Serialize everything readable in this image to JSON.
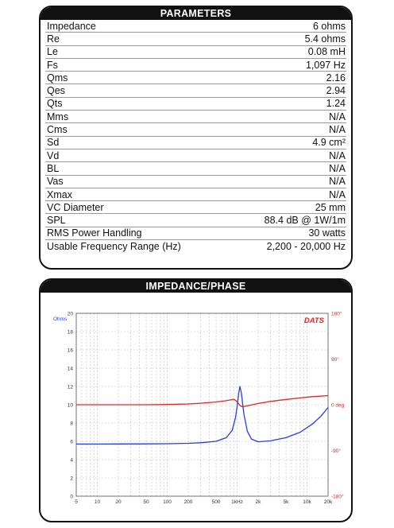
{
  "parameters": {
    "title": "PARAMETERS",
    "rows": [
      {
        "label": "Impedance",
        "value": "6 ohms"
      },
      {
        "label": "Re",
        "value": "5.4 ohms"
      },
      {
        "label": "Le",
        "value": "0.08 mH"
      },
      {
        "label": "Fs",
        "value": "1,097 Hz"
      },
      {
        "label": "Qms",
        "value": "2.16"
      },
      {
        "label": "Qes",
        "value": "2.94"
      },
      {
        "label": "Qts",
        "value": "1.24"
      },
      {
        "label": "Mms",
        "value": "N/A"
      },
      {
        "label": "Cms",
        "value": "N/A"
      },
      {
        "label": "Sd",
        "value": "4.9 cm²"
      },
      {
        "label": "Vd",
        "value": "N/A"
      },
      {
        "label": "BL",
        "value": "N/A"
      },
      {
        "label": "Vas",
        "value": "N/A"
      },
      {
        "label": "Xmax",
        "value": "N/A"
      },
      {
        "label": "VC Diameter",
        "value": "25 mm"
      },
      {
        "label": "SPL",
        "value": "88.4 dB @ 1W/1m"
      },
      {
        "label": "RMS Power Handling",
        "value": "30 watts"
      },
      {
        "label": "Usable Frequency Range (Hz)",
        "value": "2,200 - 20,000 Hz"
      }
    ]
  },
  "impedance_panel": {
    "title": "IMPEDANCE/PHASE",
    "logo_text": "DATS",
    "left_unit": "Ohms",
    "colors": {
      "impedance": "#2a3fd6",
      "phase": "#d42a2a",
      "axis_label_red": "#d42a2a",
      "logo": "#d42a2a"
    }
  },
  "chart_data": {
    "type": "line",
    "x_scale": "log",
    "xlim": [
      5,
      20000
    ],
    "ylim": [
      0,
      20
    ],
    "x_ticks": [
      "5",
      "10",
      "20",
      "50",
      "100",
      "200",
      "500",
      "1kHz",
      "2k",
      "5k",
      "10k",
      "20k"
    ],
    "x_tick_values": [
      5,
      10,
      20,
      50,
      100,
      200,
      500,
      1000,
      2000,
      5000,
      10000,
      20000
    ],
    "y_ticks": [
      0,
      2,
      4,
      6,
      8,
      10,
      12,
      14,
      16,
      18,
      20
    ],
    "right_ticks": [
      "180°",
      "90°",
      "0 deg",
      "-90°",
      "-180°"
    ],
    "right_tick_degrees": [
      180,
      90,
      0,
      -90,
      -180
    ],
    "right_axis_range_deg": [
      -180,
      180
    ],
    "series": [
      {
        "key": "impedance",
        "axis": "left",
        "x": [
          5,
          10,
          20,
          50,
          100,
          200,
          300,
          500,
          700,
          850,
          950,
          1000,
          1050,
          1097,
          1150,
          1250,
          1400,
          1600,
          2000,
          3000,
          5000,
          8000,
          12000,
          16000,
          20000
        ],
        "y": [
          5.7,
          5.7,
          5.71,
          5.72,
          5.74,
          5.78,
          5.84,
          6.0,
          6.4,
          7.2,
          8.6,
          9.8,
          11.2,
          12.0,
          11.3,
          9.0,
          7.1,
          6.25,
          5.95,
          6.05,
          6.4,
          7.0,
          7.9,
          8.8,
          9.7
        ]
      },
      {
        "key": "phase",
        "axis": "right",
        "x": [
          5,
          10,
          20,
          50,
          100,
          200,
          300,
          500,
          700,
          900,
          1000,
          1100,
          1200,
          1400,
          1700,
          2000,
          3000,
          5000,
          8000,
          12000,
          20000
        ],
        "y": [
          0,
          0,
          0,
          0,
          0.5,
          1.5,
          3,
          5.5,
          8,
          11,
          6,
          -1.5,
          -4,
          -2,
          0.5,
          2.5,
          6.5,
          10.5,
          13.5,
          16,
          18
        ]
      }
    ]
  }
}
